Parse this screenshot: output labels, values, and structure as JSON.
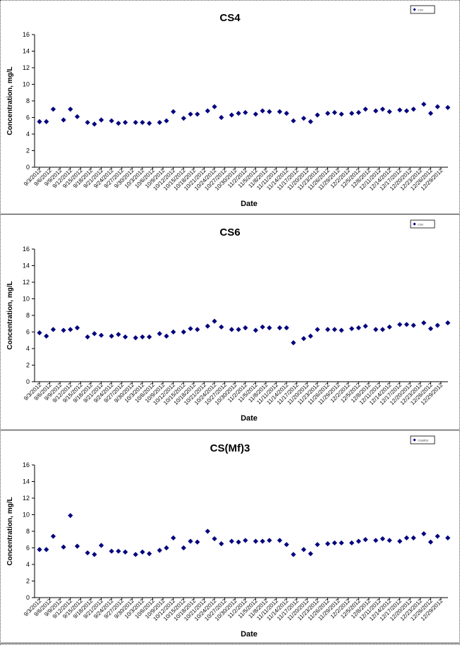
{
  "colors": {
    "marker": "#00007f",
    "axis": "#000000",
    "panel_border": "#222222"
  },
  "chart_data": [
    {
      "type": "scatter",
      "title": "CS4",
      "xlabel": "Date",
      "ylabel": "Concentration, mg/L",
      "ylim": [
        0,
        16
      ],
      "yticks": [
        0,
        2,
        4,
        6,
        8,
        10,
        12,
        14,
        16
      ],
      "grid": false,
      "legend": "top-right",
      "legend_entry": "CS4",
      "x_tick_labels": [
        "9/3/2012",
        "9/6/2012",
        "9/9/2012",
        "9/12/2012",
        "9/15/2012",
        "9/18/2012",
        "9/21/2012",
        "9/24/2012",
        "9/27/2012",
        "9/30/2012",
        "10/3/2012",
        "10/6/2012",
        "10/9/2012",
        "10/12/2012",
        "10/15/2012",
        "10/18/2012",
        "10/21/2012",
        "10/24/2012",
        "10/27/2012",
        "10/30/2012",
        "11/2/2012",
        "11/5/2012",
        "11/8/2012",
        "11/11/2012",
        "11/14/2012",
        "11/17/2012",
        "11/20/2012",
        "11/23/2012",
        "11/26/2012",
        "11/29/2012",
        "12/2/2012",
        "12/5/2012",
        "12/8/2012",
        "12/11/2012",
        "12/14/2012",
        "12/17/2012",
        "12/20/2012",
        "12/23/2012",
        "12/26/2012",
        "12/29/2012"
      ],
      "points": [
        [
          "9/3/2012",
          5.5
        ],
        [
          "9/5/2012",
          5.5
        ],
        [
          "9/7/2012",
          7.0
        ],
        [
          "9/10/2012",
          5.7
        ],
        [
          "9/12/2012",
          7.0
        ],
        [
          "9/14/2012",
          6.1
        ],
        [
          "9/17/2012",
          5.4
        ],
        [
          "9/19/2012",
          5.2
        ],
        [
          "9/21/2012",
          5.7
        ],
        [
          "9/24/2012",
          5.6
        ],
        [
          "9/26/2012",
          5.3
        ],
        [
          "9/28/2012",
          5.4
        ],
        [
          "10/1/2012",
          5.4
        ],
        [
          "10/3/2012",
          5.4
        ],
        [
          "10/5/2012",
          5.3
        ],
        [
          "10/8/2012",
          5.4
        ],
        [
          "10/10/2012",
          5.6
        ],
        [
          "10/12/2012",
          6.7
        ],
        [
          "10/15/2012",
          5.9
        ],
        [
          "10/17/2012",
          6.4
        ],
        [
          "10/19/2012",
          6.4
        ],
        [
          "10/22/2012",
          6.8
        ],
        [
          "10/24/2012",
          7.3
        ],
        [
          "10/26/2012",
          6.0
        ],
        [
          "10/29/2012",
          6.3
        ],
        [
          "10/31/2012",
          6.5
        ],
        [
          "11/2/2012",
          6.6
        ],
        [
          "11/5/2012",
          6.4
        ],
        [
          "11/7/2012",
          6.8
        ],
        [
          "11/9/2012",
          6.7
        ],
        [
          "11/12/2012",
          6.7
        ],
        [
          "11/14/2012",
          6.5
        ],
        [
          "11/16/2012",
          5.6
        ],
        [
          "11/19/2012",
          5.9
        ],
        [
          "11/21/2012",
          5.5
        ],
        [
          "11/23/2012",
          6.3
        ],
        [
          "11/26/2012",
          6.5
        ],
        [
          "11/28/2012",
          6.6
        ],
        [
          "11/30/2012",
          6.4
        ],
        [
          "12/3/2012",
          6.5
        ],
        [
          "12/5/2012",
          6.6
        ],
        [
          "12/7/2012",
          7.0
        ],
        [
          "12/10/2012",
          6.8
        ],
        [
          "12/12/2012",
          7.0
        ],
        [
          "12/14/2012",
          6.7
        ],
        [
          "12/17/2012",
          6.9
        ],
        [
          "12/19/2012",
          6.8
        ],
        [
          "12/21/2012",
          7.0
        ],
        [
          "12/24/2012",
          7.6
        ],
        [
          "12/26/2012",
          6.5
        ],
        [
          "12/28/2012",
          7.3
        ],
        [
          "12/31/2012",
          7.2
        ]
      ]
    },
    {
      "type": "scatter",
      "title": "CS6",
      "xlabel": "Date",
      "ylabel": "Concentration, mg/L",
      "ylim": [
        0,
        16
      ],
      "yticks": [
        0,
        2,
        4,
        6,
        8,
        10,
        12,
        14,
        16
      ],
      "grid": false,
      "legend": "top-right",
      "legend_entry": "CS6",
      "x_tick_labels": [
        "9/3/2012",
        "9/6/2012",
        "9/9/2012",
        "9/12/2012",
        "9/15/2012",
        "9/18/2012",
        "9/21/2012",
        "9/24/2012",
        "9/27/2012",
        "9/30/2012",
        "10/3/2012",
        "10/6/2012",
        "10/9/2012",
        "10/12/2012",
        "10/15/2012",
        "10/18/2012",
        "10/21/2012",
        "10/24/2012",
        "10/27/2012",
        "10/30/2012",
        "11/2/2012",
        "11/5/2012",
        "11/8/2012",
        "11/11/2012",
        "11/14/2012",
        "11/17/2012",
        "11/20/2012",
        "11/23/2012",
        "11/26/2012",
        "11/29/2012",
        "12/2/2012",
        "12/5/2012",
        "12/8/2012",
        "12/11/2012",
        "12/14/2012",
        "12/17/2012",
        "12/20/2012",
        "12/23/2012",
        "12/26/2012",
        "12/29/2012"
      ],
      "points": [
        [
          "9/3/2012",
          5.9
        ],
        [
          "9/5/2012",
          5.5
        ],
        [
          "9/7/2012",
          6.3
        ],
        [
          "9/10/2012",
          6.2
        ],
        [
          "9/12/2012",
          6.3
        ],
        [
          "9/14/2012",
          6.5
        ],
        [
          "9/17/2012",
          5.4
        ],
        [
          "9/19/2012",
          5.8
        ],
        [
          "9/21/2012",
          5.6
        ],
        [
          "9/24/2012",
          5.5
        ],
        [
          "9/26/2012",
          5.7
        ],
        [
          "9/28/2012",
          5.4
        ],
        [
          "10/1/2012",
          5.3
        ],
        [
          "10/3/2012",
          5.4
        ],
        [
          "10/5/2012",
          5.4
        ],
        [
          "10/8/2012",
          5.8
        ],
        [
          "10/10/2012",
          5.5
        ],
        [
          "10/12/2012",
          6.0
        ],
        [
          "10/15/2012",
          6.0
        ],
        [
          "10/17/2012",
          6.4
        ],
        [
          "10/19/2012",
          6.3
        ],
        [
          "10/22/2012",
          6.7
        ],
        [
          "10/24/2012",
          7.3
        ],
        [
          "10/26/2012",
          6.6
        ],
        [
          "10/29/2012",
          6.3
        ],
        [
          "10/31/2012",
          6.3
        ],
        [
          "11/2/2012",
          6.5
        ],
        [
          "11/5/2012",
          6.2
        ],
        [
          "11/7/2012",
          6.6
        ],
        [
          "11/9/2012",
          6.5
        ],
        [
          "11/12/2012",
          6.5
        ],
        [
          "11/14/2012",
          6.5
        ],
        [
          "11/16/2012",
          4.7
        ],
        [
          "11/19/2012",
          5.2
        ],
        [
          "11/21/2012",
          5.5
        ],
        [
          "11/23/2012",
          6.3
        ],
        [
          "11/26/2012",
          6.3
        ],
        [
          "11/28/2012",
          6.3
        ],
        [
          "11/30/2012",
          6.2
        ],
        [
          "12/3/2012",
          6.4
        ],
        [
          "12/5/2012",
          6.5
        ],
        [
          "12/7/2012",
          6.7
        ],
        [
          "12/10/2012",
          6.3
        ],
        [
          "12/12/2012",
          6.3
        ],
        [
          "12/14/2012",
          6.6
        ],
        [
          "12/17/2012",
          6.9
        ],
        [
          "12/19/2012",
          6.9
        ],
        [
          "12/21/2012",
          6.8
        ],
        [
          "12/24/2012",
          7.1
        ],
        [
          "12/26/2012",
          6.4
        ],
        [
          "12/28/2012",
          6.8
        ],
        [
          "12/31/2012",
          7.1
        ]
      ]
    },
    {
      "type": "scatter",
      "title": "CS(Mf)3",
      "xlabel": "Date",
      "ylabel": "Concentration, mg/L",
      "ylim": [
        0,
        16
      ],
      "yticks": [
        0,
        2,
        4,
        6,
        8,
        10,
        12,
        14,
        16
      ],
      "grid": false,
      "legend": "top-right",
      "legend_entry": "CS(Mf)3",
      "x_tick_labels": [
        "9/3/2012",
        "9/6/2012",
        "9/9/2012",
        "9/12/2012",
        "9/15/2012",
        "9/18/2012",
        "9/21/2012",
        "9/24/2012",
        "9/27/2012",
        "9/30/2012",
        "10/3/2012",
        "10/6/2012",
        "10/9/2012",
        "10/12/2012",
        "10/15/2012",
        "10/18/2012",
        "10/21/2012",
        "10/24/2012",
        "10/27/2012",
        "10/30/2012",
        "11/2/2012",
        "11/5/2012",
        "11/8/2012",
        "11/11/2012",
        "11/14/2012",
        "11/17/2012",
        "11/20/2012",
        "11/23/2012",
        "11/26/2012",
        "11/29/2012",
        "12/2/2012",
        "12/5/2012",
        "12/8/2012",
        "12/11/2012",
        "12/14/2012",
        "12/17/2012",
        "12/20/2012",
        "12/23/2012",
        "12/26/2012",
        "12/29/2012"
      ],
      "points": [
        [
          "9/3/2012",
          5.8
        ],
        [
          "9/5/2012",
          5.8
        ],
        [
          "9/7/2012",
          7.4
        ],
        [
          "9/10/2012",
          6.1
        ],
        [
          "9/12/2012",
          9.9
        ],
        [
          "9/14/2012",
          6.2
        ],
        [
          "9/17/2012",
          5.4
        ],
        [
          "9/19/2012",
          5.2
        ],
        [
          "9/21/2012",
          6.3
        ],
        [
          "9/24/2012",
          5.6
        ],
        [
          "9/26/2012",
          5.6
        ],
        [
          "9/28/2012",
          5.5
        ],
        [
          "10/1/2012",
          5.2
        ],
        [
          "10/3/2012",
          5.5
        ],
        [
          "10/5/2012",
          5.3
        ],
        [
          "10/8/2012",
          5.7
        ],
        [
          "10/10/2012",
          6.0
        ],
        [
          "10/12/2012",
          7.2
        ],
        [
          "10/15/2012",
          6.0
        ],
        [
          "10/17/2012",
          6.8
        ],
        [
          "10/19/2012",
          6.7
        ],
        [
          "10/22/2012",
          8.0
        ],
        [
          "10/24/2012",
          7.1
        ],
        [
          "10/26/2012",
          6.5
        ],
        [
          "10/29/2012",
          6.8
        ],
        [
          "10/31/2012",
          6.7
        ],
        [
          "11/2/2012",
          6.9
        ],
        [
          "11/5/2012",
          6.8
        ],
        [
          "11/7/2012",
          6.8
        ],
        [
          "11/9/2012",
          6.9
        ],
        [
          "11/12/2012",
          6.9
        ],
        [
          "11/14/2012",
          6.4
        ],
        [
          "11/16/2012",
          5.2
        ],
        [
          "11/19/2012",
          5.8
        ],
        [
          "11/21/2012",
          5.3
        ],
        [
          "11/23/2012",
          6.4
        ],
        [
          "11/26/2012",
          6.5
        ],
        [
          "11/28/2012",
          6.6
        ],
        [
          "11/30/2012",
          6.6
        ],
        [
          "12/3/2012",
          6.6
        ],
        [
          "12/5/2012",
          6.8
        ],
        [
          "12/7/2012",
          7.0
        ],
        [
          "12/10/2012",
          6.9
        ],
        [
          "12/12/2012",
          7.1
        ],
        [
          "12/14/2012",
          6.9
        ],
        [
          "12/17/2012",
          6.8
        ],
        [
          "12/19/2012",
          7.2
        ],
        [
          "12/21/2012",
          7.2
        ],
        [
          "12/24/2012",
          7.7
        ],
        [
          "12/26/2012",
          6.7
        ],
        [
          "12/28/2012",
          7.4
        ],
        [
          "12/31/2012",
          7.2
        ]
      ]
    }
  ]
}
